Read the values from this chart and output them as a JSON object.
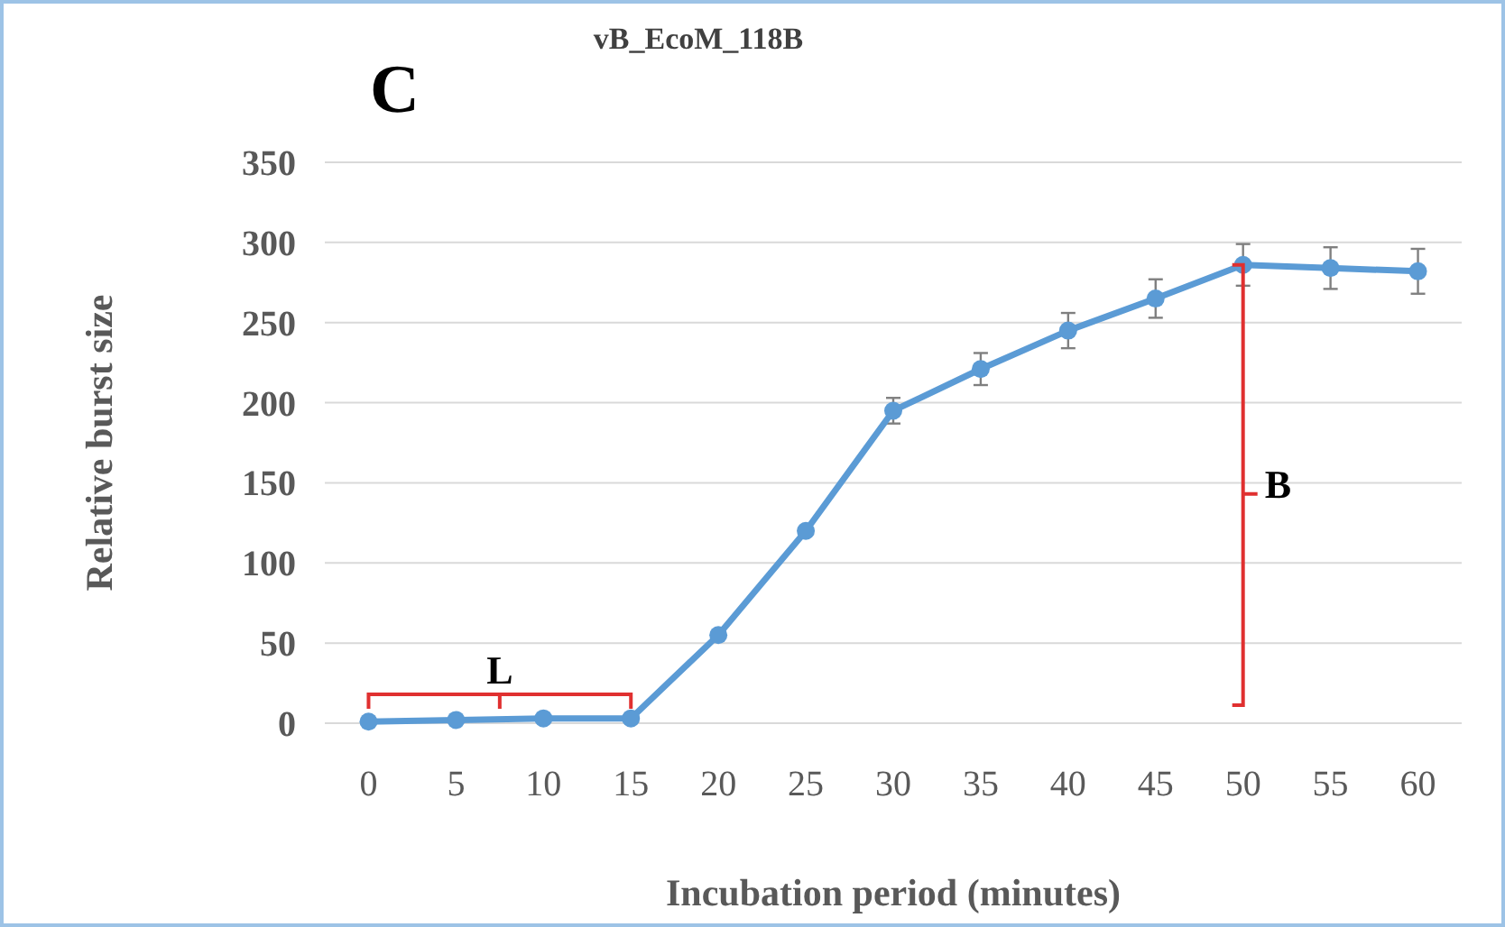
{
  "chart_data": {
    "type": "line",
    "title": "vB_EcoM_118B",
    "xlabel": "Incubation period (minutes)",
    "ylabel": "Relative burst size",
    "categories": [
      "0",
      "5",
      "10",
      "15",
      "20",
      "25",
      "30",
      "35",
      "40",
      "45",
      "50",
      "55",
      "60"
    ],
    "series": [
      {
        "color": "#5b9bd5",
        "values": [
          1,
          2,
          3,
          3,
          55,
          120,
          195,
          221,
          245,
          265,
          286,
          284,
          282
        ],
        "errors": [
          null,
          null,
          null,
          null,
          null,
          null,
          8,
          10,
          11,
          12,
          13,
          13,
          14
        ]
      }
    ],
    "ylim": [
      0,
      350
    ],
    "yticks": [
      0,
      50,
      100,
      150,
      200,
      250,
      300,
      350
    ],
    "grid": "y",
    "marker": "circle",
    "line_style": "solid",
    "annotations": [
      "C",
      "L",
      "B"
    ]
  }
}
